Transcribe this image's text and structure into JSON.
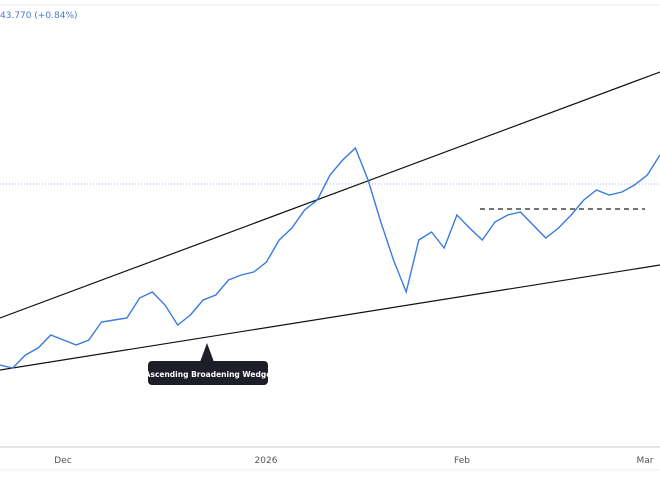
{
  "header": {
    "price_change": "43.770 (+0.84%)"
  },
  "chart_data": {
    "type": "line",
    "title": "",
    "xlabel": "",
    "ylabel": "",
    "x_ticks": [
      "Dec",
      "2026",
      "Feb",
      "Mar"
    ],
    "grid": false,
    "series": [
      {
        "color": "#3a7be0",
        "values": [
          135,
          132,
          145,
          152,
          165,
          160,
          155,
          160,
          178,
          180,
          182,
          202,
          208,
          195,
          175,
          185,
          200,
          205,
          220,
          225,
          228,
          238,
          260,
          272,
          290,
          300,
          325,
          340,
          352,
          320,
          278,
          240,
          208,
          260,
          268,
          252,
          285,
          272,
          260,
          278,
          285,
          288,
          275,
          262,
          272,
          285,
          300,
          310,
          305,
          308,
          315,
          325,
          345
        ]
      }
    ],
    "annotations": {
      "pattern_label": "Ascending Broadening Wedge"
    },
    "colors": {
      "price_line": "#3a7be0",
      "trendline": "#111111",
      "label_bg": "#1e1e28"
    }
  }
}
